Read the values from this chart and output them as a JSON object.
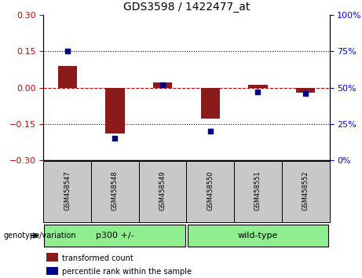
{
  "title": "GDS3598 / 1422477_at",
  "samples": [
    "GSM458547",
    "GSM458548",
    "GSM458549",
    "GSM458550",
    "GSM458551",
    "GSM458552"
  ],
  "red_values": [
    0.09,
    -0.19,
    0.02,
    -0.13,
    0.01,
    -0.02
  ],
  "blue_values_pct": [
    75,
    15,
    52,
    20,
    47,
    46
  ],
  "ylim_left": [
    -0.3,
    0.3
  ],
  "ylim_right": [
    0,
    100
  ],
  "yticks_left": [
    -0.3,
    -0.15,
    0,
    0.15,
    0.3
  ],
  "yticks_right": [
    0,
    25,
    50,
    75,
    100
  ],
  "genotype_label": "genotype/variation",
  "legend_red": "transformed count",
  "legend_blue": "percentile rank within the sample",
  "bar_color": "#8B1A1A",
  "dot_color": "#00008B",
  "zero_line_color": "#CC0000",
  "grid_color": "#000000",
  "bg_plot": "#FFFFFF",
  "bg_xtick": "#C8C8C8",
  "bg_group": "#90EE90",
  "group_defs": [
    [
      0,
      3,
      "p300 +/-"
    ],
    [
      3,
      6,
      "wild-type"
    ]
  ]
}
